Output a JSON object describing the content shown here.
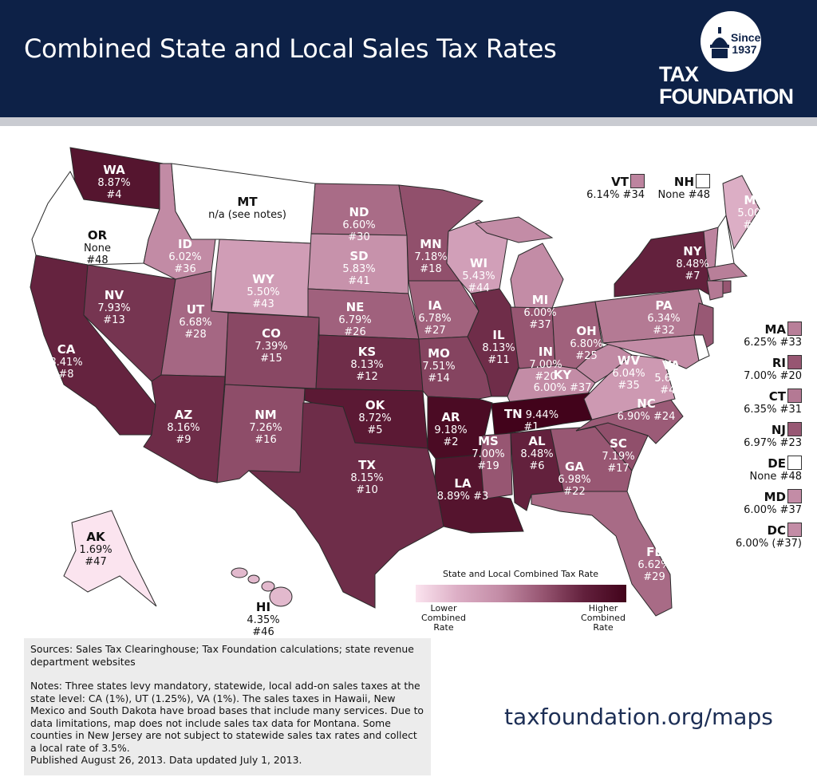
{
  "header": {
    "title": "Combined State and Local Sales Tax Rates",
    "logo": {
      "since": "Since 1937",
      "line1": "TAX",
      "line2": "FOUNDATION"
    },
    "background_color": "#0d2147"
  },
  "color_scale": {
    "no_tax_color": "#ffffff",
    "stops": [
      [
        1.69,
        "#fbe4ef"
      ],
      [
        5.0,
        "#dcaec5"
      ],
      [
        6.0,
        "#c38ca6"
      ],
      [
        7.0,
        "#975672"
      ],
      [
        8.5,
        "#62203c"
      ],
      [
        9.44,
        "#42031b"
      ]
    ]
  },
  "states": {
    "WA": {
      "abbr": "WA",
      "rate": 8.87,
      "lines": [
        "8.87%",
        "#4"
      ]
    },
    "OR": {
      "abbr": "OR",
      "rate": null,
      "lines": [
        "None",
        "#48"
      ]
    },
    "CA": {
      "abbr": "CA",
      "rate": 8.41,
      "lines": [
        "8.41%",
        "#8"
      ]
    },
    "NV": {
      "abbr": "NV",
      "rate": 7.93,
      "lines": [
        "7.93%",
        "#13"
      ]
    },
    "ID": {
      "abbr": "ID",
      "rate": 6.02,
      "lines": [
        "6.02%",
        "#36"
      ]
    },
    "MT": {
      "abbr": "MT",
      "rate": null,
      "lines": [
        "n/a (see notes)"
      ]
    },
    "WY": {
      "abbr": "WY",
      "rate": 5.5,
      "lines": [
        "5.50%",
        "#43"
      ]
    },
    "UT": {
      "abbr": "UT",
      "rate": 6.68,
      "lines": [
        "6.68%",
        "#28"
      ]
    },
    "AZ": {
      "abbr": "AZ",
      "rate": 8.16,
      "lines": [
        "8.16%",
        "#9"
      ]
    },
    "CO": {
      "abbr": "CO",
      "rate": 7.39,
      "lines": [
        "7.39%",
        "#15"
      ]
    },
    "NM": {
      "abbr": "NM",
      "rate": 7.26,
      "lines": [
        "7.26%",
        "#16"
      ]
    },
    "ND": {
      "abbr": "ND",
      "rate": 6.6,
      "lines": [
        "6.60%",
        "#30"
      ]
    },
    "SD": {
      "abbr": "SD",
      "rate": 5.83,
      "lines": [
        "5.83%",
        "#41"
      ]
    },
    "NE": {
      "abbr": "NE",
      "rate": 6.79,
      "lines": [
        "6.79%",
        "#26"
      ]
    },
    "KS": {
      "abbr": "KS",
      "rate": 8.13,
      "lines": [
        "8.13%",
        "#12"
      ]
    },
    "OK": {
      "abbr": "OK",
      "rate": 8.72,
      "lines": [
        "8.72%",
        "#5"
      ]
    },
    "TX": {
      "abbr": "TX",
      "rate": 8.15,
      "lines": [
        "8.15%",
        "#10"
      ]
    },
    "MN": {
      "abbr": "MN",
      "rate": 7.18,
      "lines": [
        "7.18%",
        "#18"
      ]
    },
    "IA": {
      "abbr": "IA",
      "rate": 6.78,
      "lines": [
        "6.78%",
        "#27"
      ]
    },
    "MO": {
      "abbr": "MO",
      "rate": 7.51,
      "lines": [
        "7.51%",
        "#14"
      ]
    },
    "AR": {
      "abbr": "AR",
      "rate": 9.18,
      "lines": [
        "9.18%",
        "#2"
      ]
    },
    "LA": {
      "abbr": "LA",
      "rate": 8.89,
      "lines": [
        "8.89% #3"
      ]
    },
    "WI": {
      "abbr": "WI",
      "rate": 5.43,
      "lines": [
        "5.43%",
        "#44"
      ]
    },
    "IL": {
      "abbr": "IL",
      "rate": 8.13,
      "lines": [
        "8.13%",
        "#11"
      ]
    },
    "MI": {
      "abbr": "MI",
      "rate": 6.0,
      "lines": [
        "6.00%",
        "#37"
      ]
    },
    "IN": {
      "abbr": "IN",
      "rate": 7.0,
      "lines": [
        "7.00%",
        "#20"
      ]
    },
    "OH": {
      "abbr": "OH",
      "rate": 6.8,
      "lines": [
        "6.80%",
        "#25"
      ]
    },
    "KY": {
      "abbr": "KY",
      "rate": 6.0,
      "lines": [
        "6.00% #37"
      ]
    },
    "TN": {
      "abbr": "TN",
      "rate": 9.44,
      "lines": [
        "9.44%",
        "#1"
      ]
    },
    "MS": {
      "abbr": "MS",
      "rate": 7.0,
      "lines": [
        "7.00%",
        "#19"
      ]
    },
    "AL": {
      "abbr": "AL",
      "rate": 8.48,
      "lines": [
        "8.48%",
        "#6"
      ]
    },
    "GA": {
      "abbr": "GA",
      "rate": 6.98,
      "lines": [
        "6.98%",
        "#22"
      ]
    },
    "FL": {
      "abbr": "FL",
      "rate": 6.62,
      "lines": [
        "6.62%",
        "#29"
      ]
    },
    "SC": {
      "abbr": "SC",
      "rate": 7.19,
      "lines": [
        "7.19%",
        "#17"
      ]
    },
    "NC": {
      "abbr": "NC",
      "rate": 6.9,
      "lines": [
        "6.90% #24"
      ]
    },
    "VA": {
      "abbr": "VA",
      "rate": 5.62,
      "lines": [
        "5.62%",
        "#42"
      ]
    },
    "WV": {
      "abbr": "WV",
      "rate": 6.04,
      "lines": [
        "6.04%",
        "#35"
      ]
    },
    "PA": {
      "abbr": "PA",
      "rate": 6.34,
      "lines": [
        "6.34%",
        "#32"
      ]
    },
    "NY": {
      "abbr": "NY",
      "rate": 8.48,
      "lines": [
        "8.48%",
        "#7"
      ]
    },
    "ME": {
      "abbr": "ME",
      "rate": 5.0,
      "lines": [
        "5.00%",
        "#45"
      ]
    },
    "AK": {
      "abbr": "AK",
      "rate": 1.69,
      "lines": [
        "1.69%",
        "#47"
      ]
    },
    "HI": {
      "abbr": "HI",
      "rate": 4.35,
      "lines": [
        "4.35%",
        "#46"
      ]
    },
    "VT": {
      "abbr": "VT",
      "rate": 6.14,
      "lines": [
        "6.14% #34"
      ]
    },
    "NH": {
      "abbr": "NH",
      "rate": null,
      "lines": [
        "None #48"
      ]
    },
    "MA": {
      "abbr": "MA",
      "rate": 6.25,
      "lines": [
        "6.25% #33"
      ]
    },
    "RI": {
      "abbr": "RI",
      "rate": 7.0,
      "lines": [
        "7.00% #20"
      ]
    },
    "CT": {
      "abbr": "CT",
      "rate": 6.35,
      "lines": [
        "6.35% #31"
      ]
    },
    "NJ": {
      "abbr": "NJ",
      "rate": 6.97,
      "lines": [
        "6.97% #23"
      ]
    },
    "DE": {
      "abbr": "DE",
      "rate": null,
      "lines": [
        "None #48"
      ]
    },
    "MD": {
      "abbr": "MD",
      "rate": 6.0,
      "lines": [
        "6.00% #37"
      ]
    },
    "DC": {
      "abbr": "DC",
      "rate": 6.0,
      "lines": [
        "6.00% (#37)"
      ]
    }
  },
  "legend": {
    "title": "State and Local Combined Tax Rate",
    "low_label": "Lower Combined Rate",
    "high_label": "Higher Combined Rate"
  },
  "notes": {
    "sources": "Sources: Sales Tax Clearinghouse; Tax Foundation calculations; state revenue department websites",
    "notes": "Notes: Three states levy mandatory, statewide, local add-on sales taxes at the state level: CA (1%), UT (1.25%), VA (1%). The sales taxes in Hawaii, New Mexico and South Dakota have broad bases that include many services. Due to data limitations, map does not include sales tax data for Montana. Some counties in New Jersey are not subject to statewide sales tax rates and collect a local rate of 3.5%.",
    "published": "Published August 26, 2013. Data updated July 1, 2013."
  },
  "url": "taxfoundation.org/maps"
}
